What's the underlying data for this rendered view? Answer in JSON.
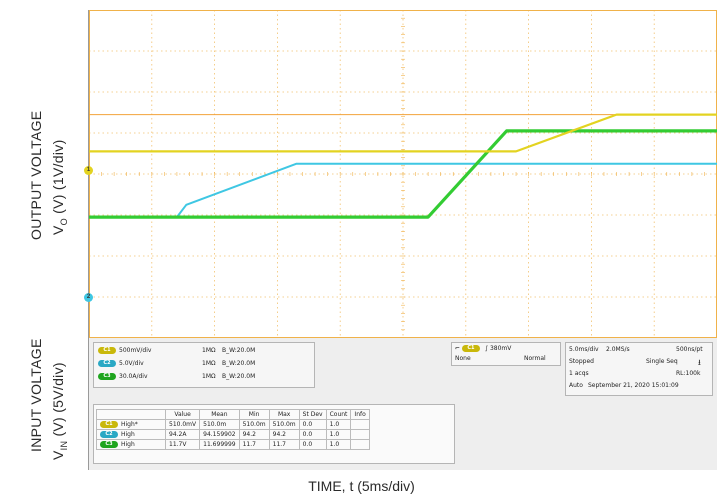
{
  "labels": {
    "output_line1": "OUTPUT VOLTAGE",
    "output_line2_pre": "V",
    "output_line2_sub": "O",
    "output_line2_post": " (V) (1V/div)",
    "input_line1": "INPUT VOLTAGE",
    "input_line2_pre": "V",
    "input_line2_sub": "IN",
    "input_line2_post": " (V) (5V/div)",
    "x_axis": "TIME, t (5ms/div)"
  },
  "colors": {
    "ch1_yellow": "#e3d320",
    "ch2_cyan": "#3fc7e3",
    "ch3_green": "#33cc33",
    "grid_orange": "#f0b24a",
    "ch4_orange": "#f2a33a"
  },
  "markers": {
    "ch1": "1",
    "ch2": "2"
  },
  "channels": [
    {
      "tag": "C1",
      "scale": "500mV/div",
      "impedance": "1MΩ",
      "bw": "B_W:20.0M"
    },
    {
      "tag": "C2",
      "scale": "5.0V/div",
      "impedance": "1MΩ",
      "bw": "B_W:20.0M"
    },
    {
      "tag": "C3",
      "scale": "30.0A/div",
      "impedance": "1MΩ",
      "bw": "B_W:20.0M"
    }
  ],
  "trigger": {
    "tag": "C1",
    "level": "380mV",
    "coupling": "None",
    "mode": "Normal"
  },
  "timebase": {
    "scale": "5.0ms/div",
    "rate": "2.0MS/s",
    "resolution": "500ns/pt",
    "state": "Stopped",
    "seq": "Single Seq",
    "acqs": "1 acqs",
    "rl": "RL:100k",
    "auto": "Auto",
    "datetime": "September 21, 2020  15:01:09"
  },
  "measurements": {
    "headers": [
      "",
      "Value",
      "Mean",
      "Min",
      "Max",
      "St Dev",
      "Count",
      "Info"
    ],
    "rows": [
      {
        "tag": "C1",
        "label": "High*",
        "cells": [
          "510.0mV",
          "510.0m",
          "510.0m",
          "510.0m",
          "0.0",
          "1.0",
          ""
        ]
      },
      {
        "tag": "C2",
        "label": "High",
        "cells": [
          "94.2A",
          "94.159902",
          "94.2",
          "94.2",
          "0.0",
          "1.0",
          ""
        ]
      },
      {
        "tag": "C3",
        "label": "High",
        "cells": [
          "11.7V",
          "11.699999",
          "11.7",
          "11.7",
          "0.0",
          "1.0",
          ""
        ]
      }
    ]
  },
  "chart_data": {
    "type": "line",
    "title": "",
    "xlabel": "TIME, t (5ms/div)",
    "x_divisions": 10,
    "y_divisions": 8,
    "series": [
      {
        "name": "",
        "color": "#e3d320",
        "x": [
          0,
          6.8,
          8.4,
          10
        ],
        "y": [
          0.55,
          0.55,
          1.45,
          1.45
        ]
      },
      {
        "name": "",
        "color": "#3fc7e3",
        "x": [
          0,
          1.4,
          1.55,
          3.3,
          10
        ],
        "y": [
          -1.05,
          -1.05,
          -0.75,
          0.25,
          0.25
        ]
      },
      {
        "name": "",
        "color": "#33cc33",
        "x": [
          0,
          5.4,
          6.65,
          10
        ],
        "y": [
          -1.05,
          -1.05,
          1.05,
          1.05
        ]
      },
      {
        "name": "",
        "color": "#f2a33a",
        "x": [
          0,
          10
        ],
        "y": [
          1.45,
          1.45
        ]
      }
    ]
  }
}
